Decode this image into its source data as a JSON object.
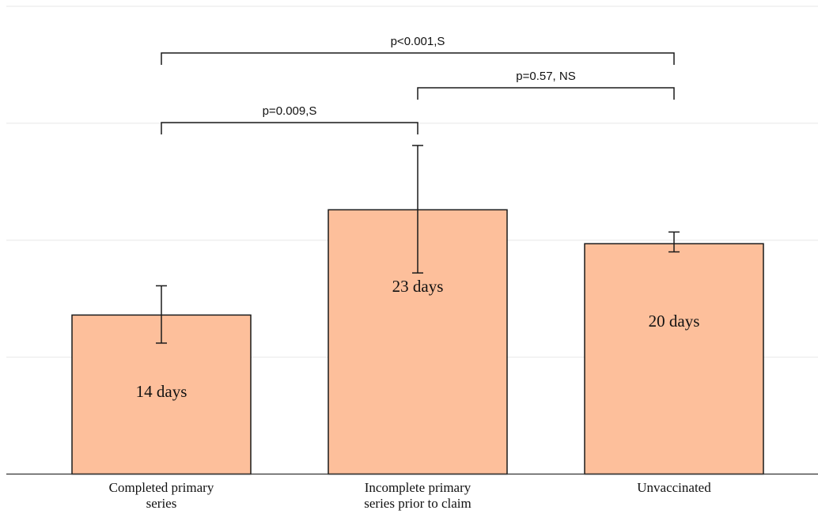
{
  "chart_data": {
    "type": "bar",
    "categories": [
      "Completed primary series",
      "Incomplete primary series prior to claim",
      "Unvaccinated"
    ],
    "category_label_lines": [
      [
        "Completed primary",
        "series"
      ],
      [
        "Incomplete primary",
        "series prior to claim"
      ],
      [
        "Unvaccinated"
      ]
    ],
    "values": [
      13.6,
      22.6,
      19.7
    ],
    "value_labels": [
      "14 days",
      "23 days",
      "20 days"
    ],
    "error_bars": [
      {
        "low": 11.2,
        "high": 16.1
      },
      {
        "low": 17.2,
        "high": 28.1
      },
      {
        "low": 19.0,
        "high": 20.7
      }
    ],
    "comparisons": [
      {
        "from": 0,
        "to": 2,
        "label": "p<0.001,S"
      },
      {
        "from": 1,
        "to": 2,
        "label": "p=0.57, NS"
      },
      {
        "from": 0,
        "to": 1,
        "label": "p=0.009,S"
      }
    ],
    "ylim": [
      0,
      40
    ],
    "gridlines": [
      10,
      20,
      30,
      40
    ],
    "grid": true,
    "xlabel": "",
    "ylabel": "",
    "title": "",
    "colors": {
      "bar_fill": "#fdbf9b",
      "bar_stroke": "#1a1a1a"
    }
  }
}
